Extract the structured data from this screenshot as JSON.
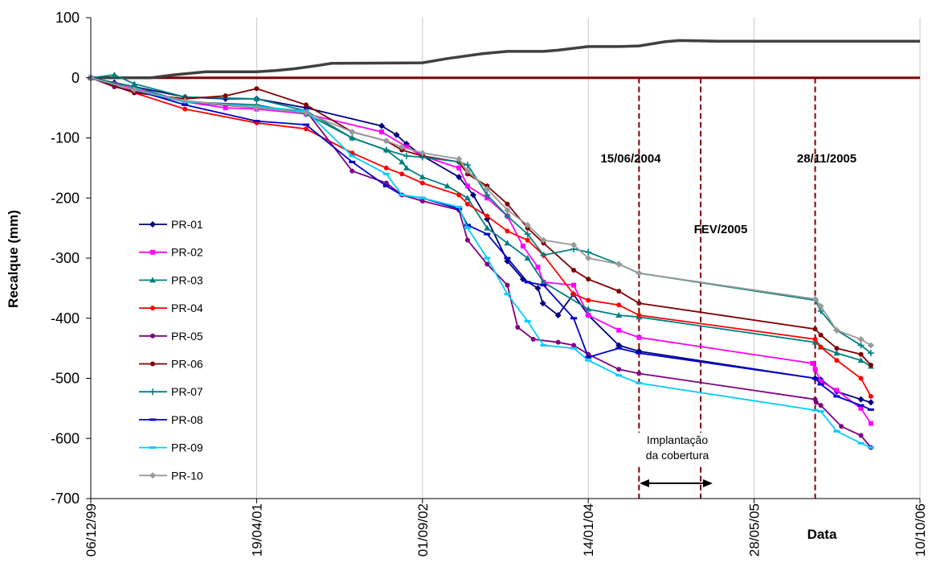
{
  "chart_data": {
    "type": "line",
    "xlabel": "Data",
    "ylabel": "Recalque (mm)",
    "ylim": [
      -700,
      100
    ],
    "yticks": [
      100,
      0,
      -100,
      -200,
      -300,
      -400,
      -500,
      -600,
      -700
    ],
    "xticks": [
      "06/12/99",
      "19/04/01",
      "01/09/02",
      "14/01/04",
      "28/05/05",
      "10/10/06"
    ],
    "grid": "vertical gridlines at date ticks",
    "legend_position": "left, inside plot",
    "annotations": {
      "date1": "15/06/2004",
      "date2": "28/11/2005",
      "fev": "FEV/2005",
      "implantacao_line1": "Implantação",
      "implantacao_line2": "da cobertura"
    },
    "reference": {
      "zero_line_color": "#800000",
      "top_curve_color": "#404040",
      "top_curve": [
        [
          "06/12/99",
          0
        ],
        [
          "01/06/00",
          0
        ],
        [
          "15/08/00",
          5
        ],
        [
          "15/11/00",
          10
        ],
        [
          "19/04/01",
          10
        ],
        [
          "15/06/01",
          12
        ],
        [
          "10/08/01",
          15
        ],
        [
          "15/10/01",
          20
        ],
        [
          "01/12/01",
          24
        ],
        [
          "01/09/02",
          25
        ],
        [
          "15/11/02",
          32
        ],
        [
          "01/03/03",
          40
        ],
        [
          "15/05/03",
          44
        ],
        [
          "01/09/03",
          44
        ],
        [
          "15/10/03",
          46
        ],
        [
          "14/01/04",
          52
        ],
        [
          "15/04/04",
          52
        ],
        [
          "15/06/04",
          53
        ],
        [
          "01/09/04",
          60
        ],
        [
          "15/10/04",
          62
        ],
        [
          "01/02/05",
          61
        ],
        [
          "10/10/06",
          61
        ]
      ]
    },
    "series": [
      {
        "name": "PR-01",
        "color": "#000080",
        "marker": "diamond",
        "points": [
          [
            "06/12/99",
            0
          ],
          [
            "15/02/00",
            -8
          ],
          [
            "15/09/00",
            -32
          ],
          [
            "15/01/01",
            -35
          ],
          [
            "19/04/01",
            -35
          ],
          [
            "15/09/01",
            -50
          ],
          [
            "01/05/02",
            -80
          ],
          [
            "15/06/02",
            -95
          ],
          [
            "15/07/02",
            -110
          ],
          [
            "01/09/02",
            -130
          ],
          [
            "20/12/02",
            -165
          ],
          [
            "01/02/03",
            -195
          ],
          [
            "15/03/03",
            -235
          ],
          [
            "15/05/03",
            -305
          ],
          [
            "01/07/03",
            -335
          ],
          [
            "15/08/03",
            -350
          ],
          [
            "30/08/03",
            -375
          ],
          [
            "15/10/03",
            -395
          ],
          [
            "30/11/03",
            -360
          ],
          [
            "14/01/04",
            -395
          ],
          [
            "15/04/04",
            -445
          ],
          [
            "15/06/04",
            -455
          ],
          [
            "28/11/2005",
            -500
          ],
          [
            "15/12/05",
            -502
          ],
          [
            "01/02/06",
            -522
          ],
          [
            "15/04/06",
            -535
          ],
          [
            "15/05/06",
            -540
          ]
        ]
      },
      {
        "name": "PR-02",
        "color": "#ff00ff",
        "marker": "square",
        "points": [
          [
            "06/12/99",
            0
          ],
          [
            "15/02/00",
            -10
          ],
          [
            "15/09/00",
            -40
          ],
          [
            "15/01/01",
            -50
          ],
          [
            "19/04/01",
            -52
          ],
          [
            "15/09/01",
            -60
          ],
          [
            "01/05/02",
            -90
          ],
          [
            "15/07/02",
            -115
          ],
          [
            "01/09/02",
            -130
          ],
          [
            "20/12/02",
            -150
          ],
          [
            "15/01/03",
            -180
          ],
          [
            "15/03/03",
            -200
          ],
          [
            "15/05/03",
            -230
          ],
          [
            "01/07/03",
            -280
          ],
          [
            "15/08/03",
            -315
          ],
          [
            "01/09/03",
            -340
          ],
          [
            "01/12/03",
            -345
          ],
          [
            "14/01/04",
            -395
          ],
          [
            "15/04/04",
            -420
          ],
          [
            "15/06/04",
            -432
          ],
          [
            "20/11/05",
            -475
          ],
          [
            "28/11/2005",
            -485
          ],
          [
            "15/12/05",
            -505
          ],
          [
            "01/02/06",
            -520
          ],
          [
            "15/04/06",
            -550
          ],
          [
            "15/05/06",
            -575
          ]
        ]
      },
      {
        "name": "PR-03",
        "color": "#008080",
        "marker": "triangle",
        "points": [
          [
            "06/12/99",
            0
          ],
          [
            "15/02/00",
            5
          ],
          [
            "15/04/00",
            -10
          ],
          [
            "15/09/00",
            -32
          ],
          [
            "19/04/01",
            -35
          ],
          [
            "15/09/01",
            -55
          ],
          [
            "01/02/02",
            -100
          ],
          [
            "15/05/02",
            -120
          ],
          [
            "01/07/02",
            -140
          ],
          [
            "15/07/02",
            -150
          ],
          [
            "01/09/02",
            -165
          ],
          [
            "15/11/02",
            -180
          ],
          [
            "15/01/03",
            -200
          ],
          [
            "15/03/03",
            -250
          ],
          [
            "15/05/03",
            -275
          ],
          [
            "15/07/03",
            -300
          ],
          [
            "01/09/03",
            -340
          ],
          [
            "14/01/04",
            -385
          ],
          [
            "15/04/04",
            -395
          ],
          [
            "15/06/04",
            -398
          ],
          [
            "28/11/2005",
            -440
          ],
          [
            "15/12/05",
            -448
          ],
          [
            "01/02/06",
            -458
          ],
          [
            "15/04/06",
            -470
          ],
          [
            "15/05/06",
            -480
          ]
        ]
      },
      {
        "name": "PR-04",
        "color": "#ff0000",
        "marker": "circle",
        "points": [
          [
            "06/12/99",
            0
          ],
          [
            "15/04/00",
            -25
          ],
          [
            "15/09/00",
            -52
          ],
          [
            "19/04/01",
            -75
          ],
          [
            "15/09/01",
            -85
          ],
          [
            "01/02/02",
            -125
          ],
          [
            "15/05/02",
            -150
          ],
          [
            "01/07/02",
            -160
          ],
          [
            "01/09/02",
            -175
          ],
          [
            "20/12/02",
            -195
          ],
          [
            "15/01/03",
            -210
          ],
          [
            "15/03/03",
            -230
          ],
          [
            "15/05/03",
            -255
          ],
          [
            "15/07/03",
            -270
          ],
          [
            "01/09/03",
            -295
          ],
          [
            "01/12/03",
            -360
          ],
          [
            "14/01/04",
            -370
          ],
          [
            "15/04/04",
            -378
          ],
          [
            "15/06/04",
            -395
          ],
          [
            "28/11/2005",
            -435
          ],
          [
            "15/12/05",
            -448
          ],
          [
            "01/02/06",
            -470
          ],
          [
            "15/04/06",
            -500
          ],
          [
            "15/05/06",
            -530
          ]
        ]
      },
      {
        "name": "PR-05",
        "color": "#800080",
        "marker": "circle",
        "points": [
          [
            "06/12/99",
            0
          ],
          [
            "15/02/00",
            -15
          ],
          [
            "15/09/00",
            -40
          ],
          [
            "19/04/01",
            -50
          ],
          [
            "15/09/01",
            -55
          ],
          [
            "01/02/02",
            -155
          ],
          [
            "15/05/02",
            -175
          ],
          [
            "01/07/02",
            -195
          ],
          [
            "01/09/02",
            -205
          ],
          [
            "20/12/02",
            -220
          ],
          [
            "15/01/03",
            -270
          ],
          [
            "15/03/03",
            -310
          ],
          [
            "15/05/03",
            -345
          ],
          [
            "15/06/03",
            -415
          ],
          [
            "01/08/03",
            -435
          ],
          [
            "15/10/03",
            -440
          ],
          [
            "01/12/03",
            -445
          ],
          [
            "14/01/04",
            -460
          ],
          [
            "15/04/04",
            -485
          ],
          [
            "15/06/04",
            -492
          ],
          [
            "28/11/2005",
            -535
          ],
          [
            "01/12/05",
            -540
          ],
          [
            "15/12/05",
            -545
          ],
          [
            "15/02/06",
            -580
          ],
          [
            "15/04/06",
            -595
          ],
          [
            "15/05/06",
            -615
          ]
        ]
      },
      {
        "name": "PR-06",
        "color": "#800000",
        "marker": "circle",
        "points": [
          [
            "06/12/99",
            0
          ],
          [
            "15/04/00",
            -25
          ],
          [
            "15/09/00",
            -35
          ],
          [
            "15/01/01",
            -30
          ],
          [
            "19/04/01",
            -18
          ],
          [
            "15/09/01",
            -45
          ],
          [
            "01/02/02",
            -90
          ],
          [
            "15/05/02",
            -105
          ],
          [
            "01/07/02",
            -120
          ],
          [
            "01/09/02",
            -130
          ],
          [
            "20/12/02",
            -140
          ],
          [
            "15/01/03",
            -160
          ],
          [
            "15/03/03",
            -180
          ],
          [
            "15/05/03",
            -210
          ],
          [
            "15/07/03",
            -250
          ],
          [
            "01/09/03",
            -275
          ],
          [
            "01/12/03",
            -320
          ],
          [
            "14/01/04",
            -335
          ],
          [
            "15/04/04",
            -355
          ],
          [
            "15/06/04",
            -375
          ],
          [
            "28/11/2005",
            -418
          ],
          [
            "15/12/05",
            -428
          ],
          [
            "01/02/06",
            -450
          ],
          [
            "15/04/06",
            -460
          ],
          [
            "15/05/06",
            -478
          ]
        ]
      },
      {
        "name": "PR-07",
        "color": "#008080",
        "marker": "plus",
        "points": [
          [
            "06/12/99",
            0
          ],
          [
            "15/04/00",
            -15
          ],
          [
            "15/09/00",
            -40
          ],
          [
            "19/04/01",
            -45
          ],
          [
            "15/09/01",
            -60
          ],
          [
            "01/02/02",
            -100
          ],
          [
            "15/05/02",
            -120
          ],
          [
            "15/07/02",
            -130
          ],
          [
            "01/09/02",
            -132
          ],
          [
            "20/12/02",
            -140
          ],
          [
            "15/01/03",
            -145
          ],
          [
            "15/03/03",
            -195
          ],
          [
            "15/05/03",
            -230
          ],
          [
            "15/07/03",
            -260
          ],
          [
            "01/09/03",
            -295
          ],
          [
            "01/12/03",
            -285
          ],
          [
            "14/01/04",
            -290
          ],
          [
            "15/04/04",
            -310
          ],
          [
            "15/06/04",
            -325
          ],
          [
            "28/11/2005",
            -370
          ],
          [
            "15/12/05",
            -388
          ],
          [
            "01/02/06",
            -420
          ],
          [
            "15/04/06",
            -445
          ],
          [
            "15/05/06",
            -458
          ]
        ]
      },
      {
        "name": "PR-08",
        "color": "#0000cc",
        "marker": "dash",
        "points": [
          [
            "06/12/99",
            0
          ],
          [
            "15/04/00",
            -20
          ],
          [
            "15/09/00",
            -45
          ],
          [
            "19/04/01",
            -72
          ],
          [
            "15/09/01",
            -78
          ],
          [
            "01/02/02",
            -140
          ],
          [
            "15/05/02",
            -180
          ],
          [
            "01/07/02",
            -195
          ],
          [
            "01/09/02",
            -200
          ],
          [
            "20/12/02",
            -218
          ],
          [
            "15/01/03",
            -245
          ],
          [
            "15/03/03",
            -260
          ],
          [
            "15/05/03",
            -300
          ],
          [
            "15/07/03",
            -340
          ],
          [
            "01/09/03",
            -345
          ],
          [
            "01/12/03",
            -400
          ],
          [
            "14/01/04",
            -465
          ],
          [
            "15/04/04",
            -450
          ],
          [
            "15/06/04",
            -458
          ],
          [
            "28/11/2005",
            -500
          ],
          [
            "15/12/05",
            -510
          ],
          [
            "01/02/06",
            -530
          ],
          [
            "15/04/06",
            -545
          ],
          [
            "15/05/06",
            -552
          ]
        ]
      },
      {
        "name": "PR-09",
        "color": "#00ccff",
        "marker": "dash",
        "points": [
          [
            "06/12/99",
            0
          ],
          [
            "15/04/00",
            -20
          ],
          [
            "15/09/00",
            -40
          ],
          [
            "19/04/01",
            -48
          ],
          [
            "15/09/01",
            -55
          ],
          [
            "01/02/02",
            -130
          ],
          [
            "15/05/02",
            -160
          ],
          [
            "01/07/02",
            -195
          ],
          [
            "01/09/02",
            -200
          ],
          [
            "20/12/02",
            -215
          ],
          [
            "15/01/03",
            -250
          ],
          [
            "15/03/03",
            -300
          ],
          [
            "15/05/03",
            -360
          ],
          [
            "15/07/03",
            -405
          ],
          [
            "01/09/03",
            -445
          ],
          [
            "01/12/03",
            -450
          ],
          [
            "14/01/04",
            -470
          ],
          [
            "15/04/04",
            -495
          ],
          [
            "15/06/04",
            -508
          ],
          [
            "28/11/2005",
            -553
          ],
          [
            "15/12/05",
            -555
          ],
          [
            "01/02/06",
            -588
          ],
          [
            "15/04/06",
            -608
          ],
          [
            "15/05/06",
            -615
          ]
        ]
      },
      {
        "name": "PR-10",
        "color": "#999999",
        "marker": "diamond",
        "points": [
          [
            "06/12/99",
            0
          ],
          [
            "15/04/00",
            -20
          ],
          [
            "15/09/00",
            -38
          ],
          [
            "19/04/01",
            -50
          ],
          [
            "15/09/01",
            -58
          ],
          [
            "01/02/02",
            -90
          ],
          [
            "15/05/02",
            -105
          ],
          [
            "01/07/02",
            -115
          ],
          [
            "01/09/02",
            -125
          ],
          [
            "20/12/02",
            -135
          ],
          [
            "15/01/03",
            -155
          ],
          [
            "15/03/03",
            -185
          ],
          [
            "15/05/03",
            -220
          ],
          [
            "15/07/03",
            -245
          ],
          [
            "01/09/03",
            -270
          ],
          [
            "01/12/03",
            -278
          ],
          [
            "14/01/04",
            -300
          ],
          [
            "15/04/04",
            -310
          ],
          [
            "15/06/04",
            -325
          ],
          [
            "28/11/2005",
            -368
          ],
          [
            "15/12/05",
            -380
          ],
          [
            "01/02/06",
            -420
          ],
          [
            "15/04/06",
            -435
          ],
          [
            "15/05/06",
            -445
          ]
        ]
      }
    ]
  }
}
